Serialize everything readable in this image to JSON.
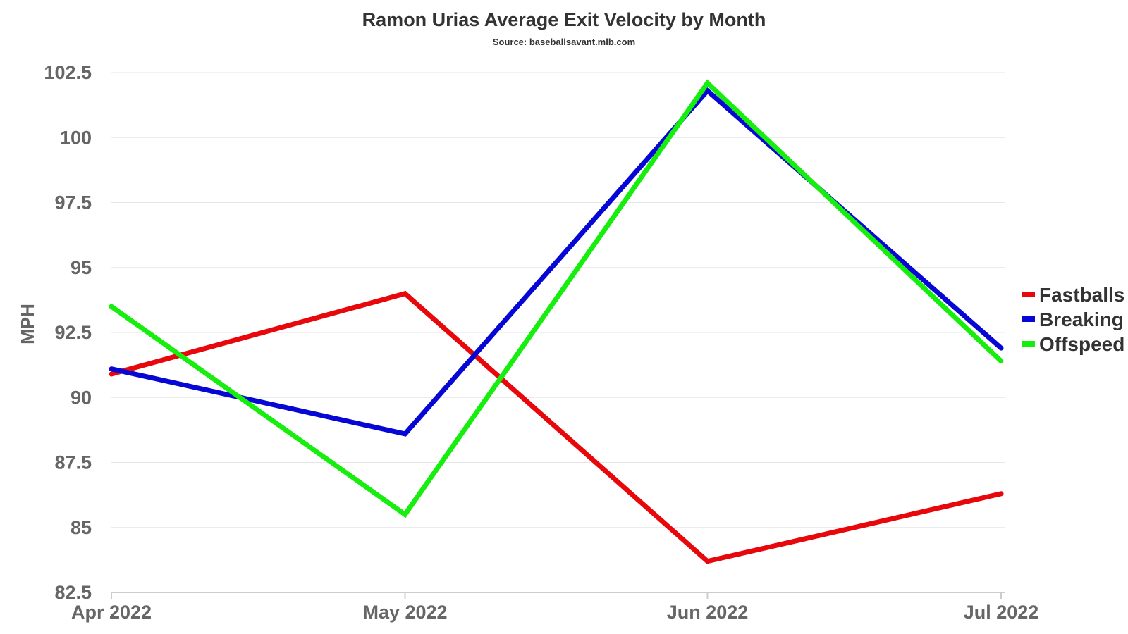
{
  "chart_data": {
    "type": "line",
    "title": "Ramon Urias Average Exit Velocity by Month",
    "subtitle": "Source: baseballsavant.mlb.com",
    "xlabel": "",
    "ylabel": "MPH",
    "categories": [
      "Apr 2022",
      "May 2022",
      "Jun 2022",
      "Jul 2022"
    ],
    "x_positions": [
      0,
      1,
      2.03,
      3.03
    ],
    "ylim": [
      82.5,
      102.5
    ],
    "yticks": [
      82.5,
      85,
      87.5,
      90,
      92.5,
      95,
      97.5,
      100,
      102.5
    ],
    "ytick_labels": [
      "82.5",
      "85",
      "87.5",
      "90",
      "92.5",
      "95",
      "97.5",
      "100",
      "102.5"
    ],
    "grid": true,
    "legend_position": "right",
    "series": [
      {
        "name": "Fastballs",
        "color": "#e8070b",
        "values": [
          90.9,
          94.0,
          83.7,
          86.3
        ]
      },
      {
        "name": "Breaking",
        "color": "#0707d5",
        "values": [
          91.1,
          88.6,
          101.8,
          91.9
        ]
      },
      {
        "name": "Offspeed",
        "color": "#16ee0d",
        "values": [
          93.5,
          85.5,
          102.1,
          91.4
        ]
      }
    ]
  }
}
